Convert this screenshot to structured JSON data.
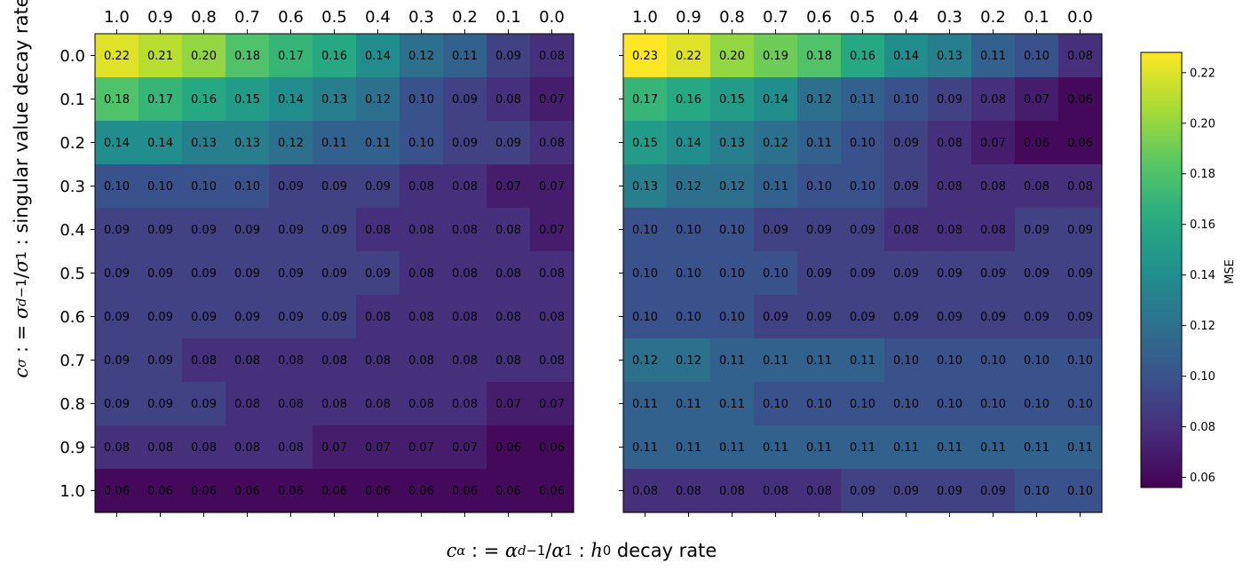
{
  "chart_data": {
    "type": "heatmap",
    "x_label": "cα: = αd−1/α1 : h0 decay rate",
    "y_label": "cσ: = σd−1/σ1 : singular value decay rate",
    "x_tick_labels": [
      "1.0",
      "0.9",
      "0.8",
      "0.7",
      "0.6",
      "0.5",
      "0.4",
      "0.3",
      "0.2",
      "0.1",
      "0.0"
    ],
    "y_tick_labels": [
      "0.0",
      "0.1",
      "0.2",
      "0.3",
      "0.4",
      "0.5",
      "0.6",
      "0.7",
      "0.8",
      "0.9",
      "1.0"
    ],
    "colormap": "viridis",
    "colorbar": {
      "label": "MSE",
      "range": [
        0.056,
        0.228
      ],
      "tick_values": [
        0.06,
        0.08,
        0.1,
        0.12,
        0.14,
        0.16,
        0.18,
        0.2,
        0.22
      ],
      "tick_labels": [
        "0.06",
        "0.08",
        "0.10",
        "0.12",
        "0.14",
        "0.16",
        "0.18",
        "0.20",
        "0.22"
      ]
    },
    "panels": [
      {
        "name": "left",
        "values": [
          [
            0.22,
            0.21,
            0.2,
            0.18,
            0.17,
            0.16,
            0.14,
            0.12,
            0.11,
            0.09,
            0.08
          ],
          [
            0.18,
            0.17,
            0.16,
            0.15,
            0.14,
            0.13,
            0.12,
            0.1,
            0.09,
            0.08,
            0.07
          ],
          [
            0.14,
            0.14,
            0.13,
            0.13,
            0.12,
            0.11,
            0.11,
            0.1,
            0.09,
            0.09,
            0.08
          ],
          [
            0.1,
            0.1,
            0.1,
            0.1,
            0.09,
            0.09,
            0.09,
            0.08,
            0.08,
            0.07,
            0.07
          ],
          [
            0.09,
            0.09,
            0.09,
            0.09,
            0.09,
            0.09,
            0.08,
            0.08,
            0.08,
            0.08,
            0.07
          ],
          [
            0.09,
            0.09,
            0.09,
            0.09,
            0.09,
            0.09,
            0.09,
            0.08,
            0.08,
            0.08,
            0.08
          ],
          [
            0.09,
            0.09,
            0.09,
            0.09,
            0.09,
            0.09,
            0.08,
            0.08,
            0.08,
            0.08,
            0.08
          ],
          [
            0.09,
            0.09,
            0.08,
            0.08,
            0.08,
            0.08,
            0.08,
            0.08,
            0.08,
            0.08,
            0.08
          ],
          [
            0.09,
            0.09,
            0.09,
            0.08,
            0.08,
            0.08,
            0.08,
            0.08,
            0.08,
            0.07,
            0.07
          ],
          [
            0.08,
            0.08,
            0.08,
            0.08,
            0.08,
            0.07,
            0.07,
            0.07,
            0.07,
            0.06,
            0.06
          ],
          [
            0.06,
            0.06,
            0.06,
            0.06,
            0.06,
            0.06,
            0.06,
            0.06,
            0.06,
            0.06,
            0.06
          ]
        ]
      },
      {
        "name": "right",
        "values": [
          [
            0.23,
            0.22,
            0.2,
            0.19,
            0.18,
            0.16,
            0.14,
            0.13,
            0.11,
            0.1,
            0.08
          ],
          [
            0.17,
            0.16,
            0.15,
            0.14,
            0.12,
            0.11,
            0.1,
            0.09,
            0.08,
            0.07,
            0.06
          ],
          [
            0.15,
            0.14,
            0.13,
            0.12,
            0.11,
            0.1,
            0.09,
            0.08,
            0.07,
            0.06,
            0.06
          ],
          [
            0.13,
            0.12,
            0.12,
            0.11,
            0.1,
            0.1,
            0.09,
            0.08,
            0.08,
            0.08,
            0.08
          ],
          [
            0.1,
            0.1,
            0.1,
            0.09,
            0.09,
            0.09,
            0.08,
            0.08,
            0.08,
            0.09,
            0.09
          ],
          [
            0.1,
            0.1,
            0.1,
            0.1,
            0.09,
            0.09,
            0.09,
            0.09,
            0.09,
            0.09,
            0.09
          ],
          [
            0.1,
            0.1,
            0.1,
            0.09,
            0.09,
            0.09,
            0.09,
            0.09,
            0.09,
            0.09,
            0.09
          ],
          [
            0.12,
            0.12,
            0.11,
            0.11,
            0.11,
            0.11,
            0.1,
            0.1,
            0.1,
            0.1,
            0.1
          ],
          [
            0.11,
            0.11,
            0.11,
            0.1,
            0.1,
            0.1,
            0.1,
            0.1,
            0.1,
            0.1,
            0.1
          ],
          [
            0.11,
            0.11,
            0.11,
            0.11,
            0.11,
            0.11,
            0.11,
            0.11,
            0.11,
            0.11,
            0.11
          ],
          [
            0.08,
            0.08,
            0.08,
            0.08,
            0.08,
            0.09,
            0.09,
            0.09,
            0.09,
            0.1,
            0.1
          ]
        ]
      }
    ]
  }
}
